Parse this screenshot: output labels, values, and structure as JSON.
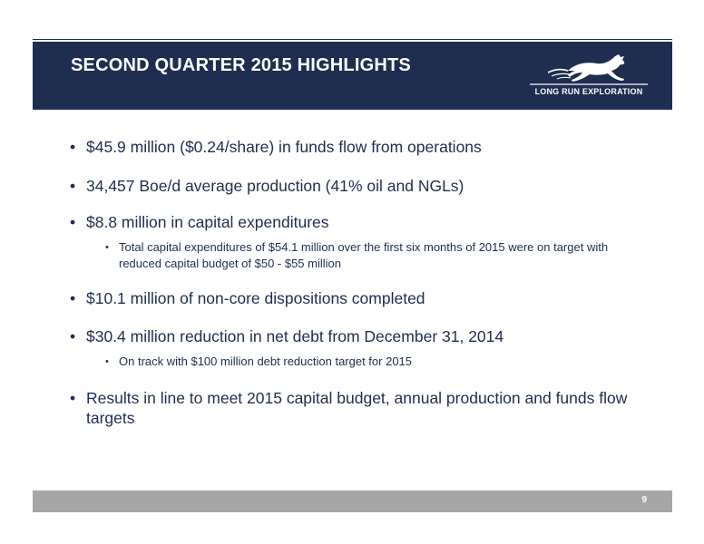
{
  "header": {
    "title": "SECOND QUARTER 2015 HIGHLIGHTS",
    "logo_text": "LONG RUN EXPLORATION",
    "logo_icon": "horse-icon",
    "background_color": "#1f2d50"
  },
  "bullets": [
    {
      "text": "$45.9 million ($0.24/share) in funds flow from operations",
      "sub": []
    },
    {
      "text": "34,457 Boe/d average production (41% oil and NGLs)",
      "sub": []
    },
    {
      "text": "$8.8 million in capital expenditures",
      "sub": [
        "Total capital expenditures of $54.1 million over the first six months of 2015 were on target with reduced capital budget of $50 - $55 million"
      ]
    },
    {
      "text": "$10.1 million of non-core dispositions completed",
      "sub": []
    },
    {
      "text": "$30.4 million reduction in net debt from December 31, 2014",
      "sub": [
        "On track with $100 million debt reduction target for 2015"
      ]
    },
    {
      "text": "Results in line to meet 2015 capital budget, annual production and funds flow targets",
      "sub": []
    }
  ],
  "footer": {
    "page_number": "9",
    "background_color": "#a6a6a6"
  },
  "bullet_glyph": "•"
}
